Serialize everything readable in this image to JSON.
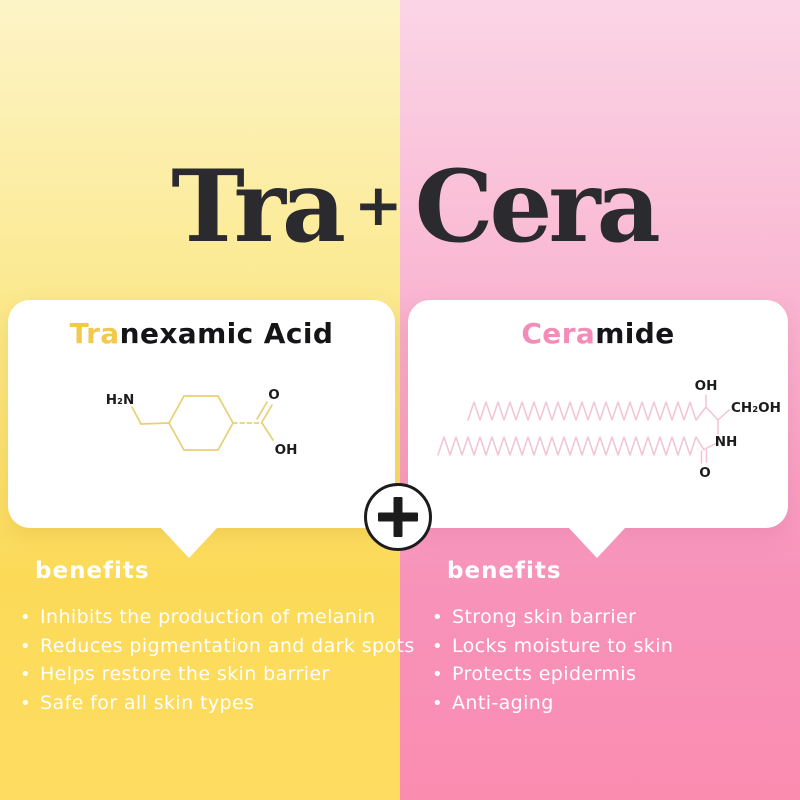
{
  "title": {
    "left": "Tra",
    "plus": "+",
    "right": "Cera"
  },
  "ui": {
    "bullet_glyph": "•",
    "plus_badge_glyph": "+"
  },
  "colors": {
    "title_ink": "#2b2a2f",
    "yellow_accent": "#f2c94d",
    "pink_accent": "#f38cb8",
    "yellow_bg_top": "#fdf4c7",
    "yellow_bg_bottom": "#fedc61",
    "pink_bg_top": "#fbd5e6",
    "pink_bg_bottom": "#fa8cb0",
    "bond_yellow": "#e9cf72",
    "bond_pink": "#f1c4d3",
    "card_bg": "#ffffff",
    "benefit_text": "#ffffff"
  },
  "left_card": {
    "name_highlight": "Tra",
    "name_rest": "nexamic Acid",
    "molecule": {
      "amine_label": "H₂N",
      "carbonyl_oxygen_label": "O",
      "hydroxyl_label": "OH"
    },
    "benefits_title": "benefits",
    "benefits": [
      "Inhibits the production of melanin",
      "Reduces pigmentation and dark spots",
      "Helps restore the skin barrier",
      "Safe for all skin types"
    ]
  },
  "right_card": {
    "name_highlight": "Cera",
    "name_rest": "mide",
    "molecule": {
      "hydroxyl_label": "OH",
      "ch2oh_label": "CH₂OH",
      "amide_label": "NH",
      "carbonyl_oxygen_label": "O"
    },
    "benefits_title": "benefits",
    "benefits": [
      "Strong skin barrier",
      "Locks moisture to skin",
      "Protects epidermis",
      "Anti-aging"
    ]
  }
}
